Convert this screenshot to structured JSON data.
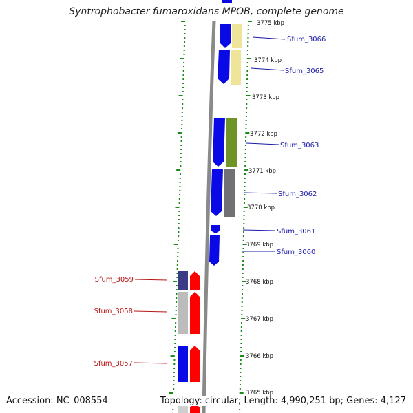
{
  "title": "Syntrophobacter fumaroxidans MPOB, complete genome",
  "accession": "Accession: NC_008554",
  "topology": "Topology: circular; Length: 4,990,251 bp; Genes: 4,127",
  "ruler_labels": [
    "3775 kbp",
    "3774 kbp",
    "3773 kbp",
    "3772 kbp",
    "3771 kbp",
    "3770 kbp",
    "3769 kbp",
    "3768 kbp",
    "3767 kbp",
    "3766 kbp",
    "3765 kbp"
  ],
  "gene_labels": [
    "Sfum_3066",
    "Sfum_3065",
    "Sfum_3063",
    "Sfum_3062",
    "Sfum_3061",
    "Sfum_3060",
    "Sfum_3059",
    "Sfum_3058",
    "Sfum_3057"
  ],
  "colors": {
    "forward_gene": "#0a0ae6",
    "reverse_gene": "#ff0000",
    "label_right": "#1a1aa8",
    "label_left": "#b81414",
    "tick": "#1a8a1a",
    "backbone": "#8a8a8a",
    "cog_yellow": "#efe59a",
    "cog_green": "#6e9428",
    "cog_gray": "#707075",
    "cog_navy": "#3c3c86",
    "cog_lightgray": "#bcbcbc"
  }
}
